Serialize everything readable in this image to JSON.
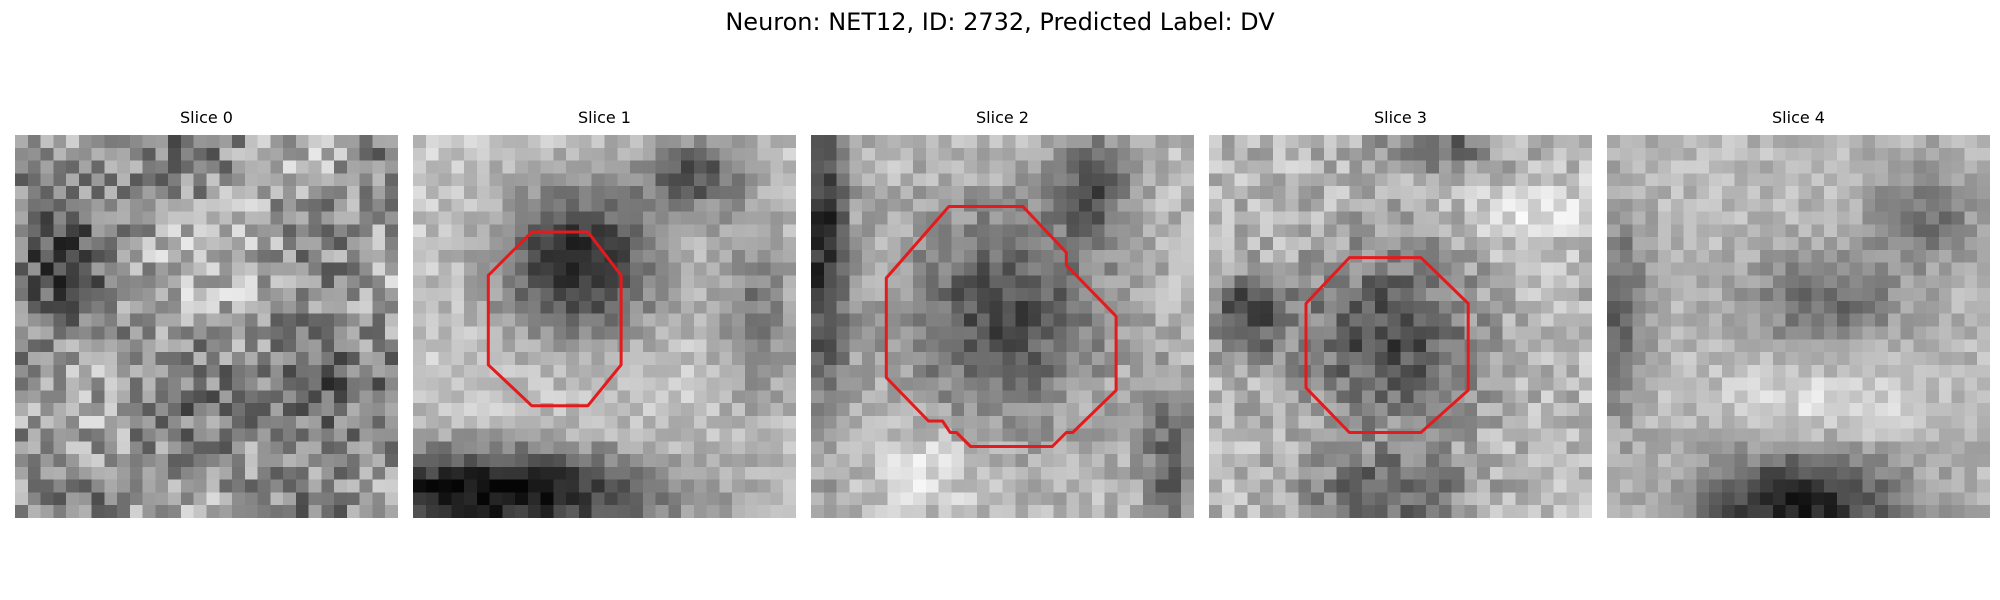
{
  "figure": {
    "title": "Neuron: NET12, ID: 2732, Predicted Label: DV",
    "contour_color": "#e41a1c"
  },
  "slices": [
    {
      "label": "Slice 0",
      "has_contour": false
    },
    {
      "label": "Slice 1",
      "has_contour": true
    },
    {
      "label": "Slice 2",
      "has_contour": true
    },
    {
      "label": "Slice 3",
      "has_contour": true
    },
    {
      "label": "Slice 4",
      "has_contour": false
    }
  ]
}
